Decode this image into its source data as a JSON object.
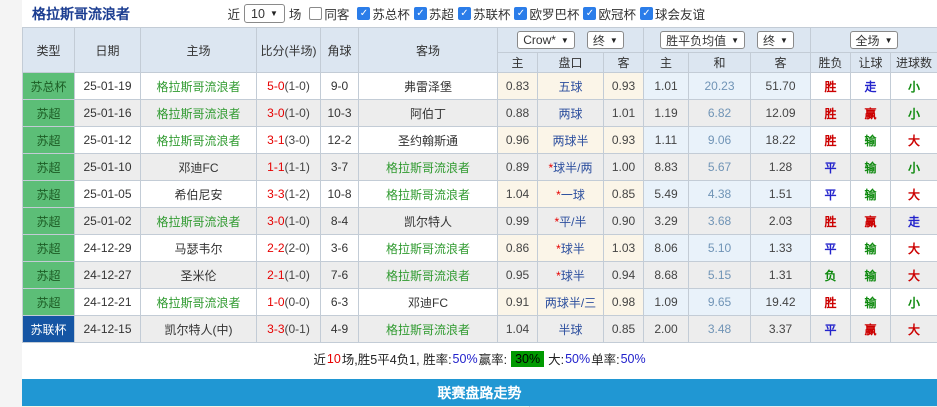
{
  "header": {
    "title": "格拉斯哥流浪者",
    "near_label": "近",
    "near_value": "10",
    "games_label": "场",
    "same_away": {
      "label": "同客",
      "checked": false
    },
    "leagues": [
      {
        "label": "苏总杯",
        "checked": true
      },
      {
        "label": "苏超",
        "checked": true
      },
      {
        "label": "苏联杯",
        "checked": true
      },
      {
        "label": "欧罗巴杯",
        "checked": true
      },
      {
        "label": "欧冠杯",
        "checked": true
      },
      {
        "label": "球会友谊",
        "checked": true
      }
    ]
  },
  "table": {
    "columns_left": [
      "类型",
      "日期",
      "主场",
      "比分(半场)",
      "角球",
      "客场"
    ],
    "asia_dropdowns": {
      "company": "Crow*",
      "time": "终"
    },
    "asia_columns": [
      "主",
      "盘口",
      "客"
    ],
    "europe_dropdowns": {
      "company": "胜平负均值",
      "time": "终"
    },
    "europe_columns": [
      "主",
      "和",
      "客"
    ],
    "result_dropdown": "全场",
    "result_columns": [
      "胜负",
      "让球",
      "进球数"
    ],
    "type_colors": {
      "苏总杯": "green",
      "苏超": "green",
      "苏联杯": "blue"
    },
    "value_colors": {
      "result": {
        "胜": "red",
        "平": "blue",
        "负": "green"
      },
      "handicap_result": {
        "赢": "red",
        "输": "green",
        "走": "blue"
      },
      "goals": {
        "大": "red",
        "小": "green",
        "走": "blue"
      }
    },
    "accent_colors": {
      "win_red": "#cc0000",
      "draw_blue": "#2424cc",
      "lose_green": "#0f8a0f",
      "team_green": "#2f9a2f",
      "score_red": "#e60000",
      "handicap_navy": "#2d4f9e",
      "type_green_bg": "#5cbe77",
      "type_blue_bg": "#1555a4",
      "footer_blue": "#2097d3"
    },
    "rows": [
      {
        "type": "苏总杯",
        "date": "25-01-19",
        "home": "格拉斯哥流浪者",
        "score": "5-0",
        "half": "1-0",
        "corner": "9-0",
        "away": "弗雷泽堡",
        "asia_home": "0.83",
        "asia_line": "五球",
        "asia_away": "0.93",
        "eu_home": "1.01",
        "eu_draw": "20.23",
        "eu_away": "51.70",
        "result": "胜",
        "handicap_result": "走",
        "goals": "小"
      },
      {
        "type": "苏超",
        "date": "25-01-16",
        "home": "格拉斯哥流浪者",
        "score": "3-0",
        "half": "1-0",
        "corner": "10-3",
        "away": "阿伯丁",
        "asia_home": "0.88",
        "asia_line": "两球",
        "asia_away": "1.01",
        "eu_home": "1.19",
        "eu_draw": "6.82",
        "eu_away": "12.09",
        "result": "胜",
        "handicap_result": "赢",
        "goals": "小"
      },
      {
        "type": "苏超",
        "date": "25-01-12",
        "home": "格拉斯哥流浪者",
        "score": "3-1",
        "half": "3-0",
        "corner": "12-2",
        "away": "圣约翰斯通",
        "asia_home": "0.96",
        "asia_line": "两球半",
        "asia_away": "0.93",
        "eu_home": "1.11",
        "eu_draw": "9.06",
        "eu_away": "18.22",
        "result": "胜",
        "handicap_result": "输",
        "goals": "大"
      },
      {
        "type": "苏超",
        "date": "25-01-10",
        "home": "邓迪FC",
        "score": "1-1",
        "half": "1-1",
        "corner": "3-7",
        "away": "格拉斯哥流浪者",
        "asia_home": "0.89",
        "asia_line": "*球半/两",
        "asia_away": "1.00",
        "eu_home": "8.83",
        "eu_draw": "5.67",
        "eu_away": "1.28",
        "result": "平",
        "handicap_result": "输",
        "goals": "小"
      },
      {
        "type": "苏超",
        "date": "25-01-05",
        "home": "希伯尼安",
        "score": "3-3",
        "half": "1-2",
        "corner": "10-8",
        "away": "格拉斯哥流浪者",
        "asia_home": "1.04",
        "asia_line": "*一球",
        "asia_away": "0.85",
        "eu_home": "5.49",
        "eu_draw": "4.38",
        "eu_away": "1.51",
        "result": "平",
        "handicap_result": "输",
        "goals": "大"
      },
      {
        "type": "苏超",
        "date": "25-01-02",
        "home": "格拉斯哥流浪者",
        "score": "3-0",
        "half": "1-0",
        "corner": "8-4",
        "away": "凯尔特人",
        "asia_home": "0.99",
        "asia_line": "*平/半",
        "asia_away": "0.90",
        "eu_home": "3.29",
        "eu_draw": "3.68",
        "eu_away": "2.03",
        "result": "胜",
        "handicap_result": "赢",
        "goals": "走"
      },
      {
        "type": "苏超",
        "date": "24-12-29",
        "home": "马瑟韦尔",
        "score": "2-2",
        "half": "2-0",
        "corner": "3-6",
        "away": "格拉斯哥流浪者",
        "asia_home": "0.86",
        "asia_line": "*球半",
        "asia_away": "1.03",
        "eu_home": "8.06",
        "eu_draw": "5.10",
        "eu_away": "1.33",
        "result": "平",
        "handicap_result": "输",
        "goals": "大"
      },
      {
        "type": "苏超",
        "date": "24-12-27",
        "home": "圣米伦",
        "score": "2-1",
        "half": "1-0",
        "corner": "7-6",
        "away": "格拉斯哥流浪者",
        "asia_home": "0.95",
        "asia_line": "*球半",
        "asia_away": "0.94",
        "eu_home": "8.68",
        "eu_draw": "5.15",
        "eu_away": "1.31",
        "result": "负",
        "handicap_result": "输",
        "goals": "大"
      },
      {
        "type": "苏超",
        "date": "24-12-21",
        "home": "格拉斯哥流浪者",
        "score": "1-0",
        "half": "0-0",
        "corner": "6-3",
        "away": "邓迪FC",
        "asia_home": "0.91",
        "asia_line": "两球半/三",
        "asia_away": "0.98",
        "eu_home": "1.09",
        "eu_draw": "9.65",
        "eu_away": "19.42",
        "result": "胜",
        "handicap_result": "输",
        "goals": "小"
      },
      {
        "type": "苏联杯",
        "date": "24-12-15",
        "home": "凯尔特人(中)",
        "score": "3-3",
        "half": "0-1",
        "corner": "4-9",
        "away": "格拉斯哥流浪者",
        "asia_home": "1.04",
        "asia_line": "半球",
        "asia_away": "0.85",
        "eu_home": "2.00",
        "eu_draw": "3.48",
        "eu_away": "3.37",
        "result": "平",
        "handicap_result": "赢",
        "goals": "大"
      }
    ]
  },
  "summary": {
    "parts": [
      {
        "text": "近",
        "color": "black"
      },
      {
        "text": "10",
        "color": "red"
      },
      {
        "text": "场,胜5平4负1, 胜率:",
        "color": "black"
      },
      {
        "text": "50%",
        "color": "blue"
      },
      {
        "text": " 赢率:",
        "color": "black"
      },
      {
        "text": "30%",
        "color": "greenbox"
      },
      {
        "text": " 大:",
        "color": "black"
      },
      {
        "text": "50%",
        "color": "blue"
      },
      {
        "text": " 单率:",
        "color": "black"
      },
      {
        "text": "50%",
        "color": "blue"
      }
    ]
  },
  "footer": {
    "label": "联赛盘路走势"
  }
}
